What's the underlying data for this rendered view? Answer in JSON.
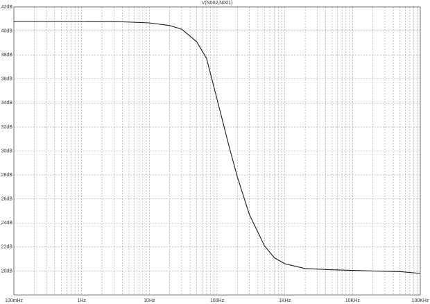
{
  "chart_data": {
    "type": "line",
    "title": "V(N002,N001)",
    "log_x": true,
    "grid": true,
    "minor_grid": true,
    "xlim": [
      0.1,
      100000
    ],
    "xticks": [
      {
        "value": 0.1,
        "label": "100mHz"
      },
      {
        "value": 1,
        "label": "1Hz"
      },
      {
        "value": 10,
        "label": "10Hz"
      },
      {
        "value": 100,
        "label": "100Hz"
      },
      {
        "value": 1000,
        "label": "1KHz"
      },
      {
        "value": 10000,
        "label": "10KHz"
      },
      {
        "value": 100000,
        "label": "100KHz"
      }
    ],
    "ylim": [
      18,
      42
    ],
    "yticks": [
      {
        "value": 20,
        "label": "20dB"
      },
      {
        "value": 22,
        "label": "22dB"
      },
      {
        "value": 24,
        "label": "24dB"
      },
      {
        "value": 26,
        "label": "26dB"
      },
      {
        "value": 28,
        "label": "28dB"
      },
      {
        "value": 30,
        "label": "30dB"
      },
      {
        "value": 32,
        "label": "32dB"
      },
      {
        "value": 34,
        "label": "34dB"
      },
      {
        "value": 36,
        "label": "36dB"
      },
      {
        "value": 38,
        "label": "38dB"
      },
      {
        "value": 40,
        "label": "40dB"
      },
      {
        "value": 42,
        "label": "42dB"
      }
    ],
    "x": [
      0.1,
      1,
      3,
      10,
      20,
      30,
      50,
      70,
      100,
      150,
      200,
      300,
      500,
      700,
      1000,
      2000,
      5000,
      10000,
      20000,
      50000,
      100000
    ],
    "series": [
      {
        "name": "V(N002,N001)",
        "color": "#1a1a1a",
        "values": [
          40.8,
          40.8,
          40.79,
          40.67,
          40.45,
          40.15,
          39.1,
          37.7,
          34.3,
          30.4,
          27.8,
          24.7,
          22.1,
          21.1,
          20.6,
          20.2,
          20.1,
          20.05,
          20.0,
          19.95,
          19.8
        ]
      }
    ]
  }
}
